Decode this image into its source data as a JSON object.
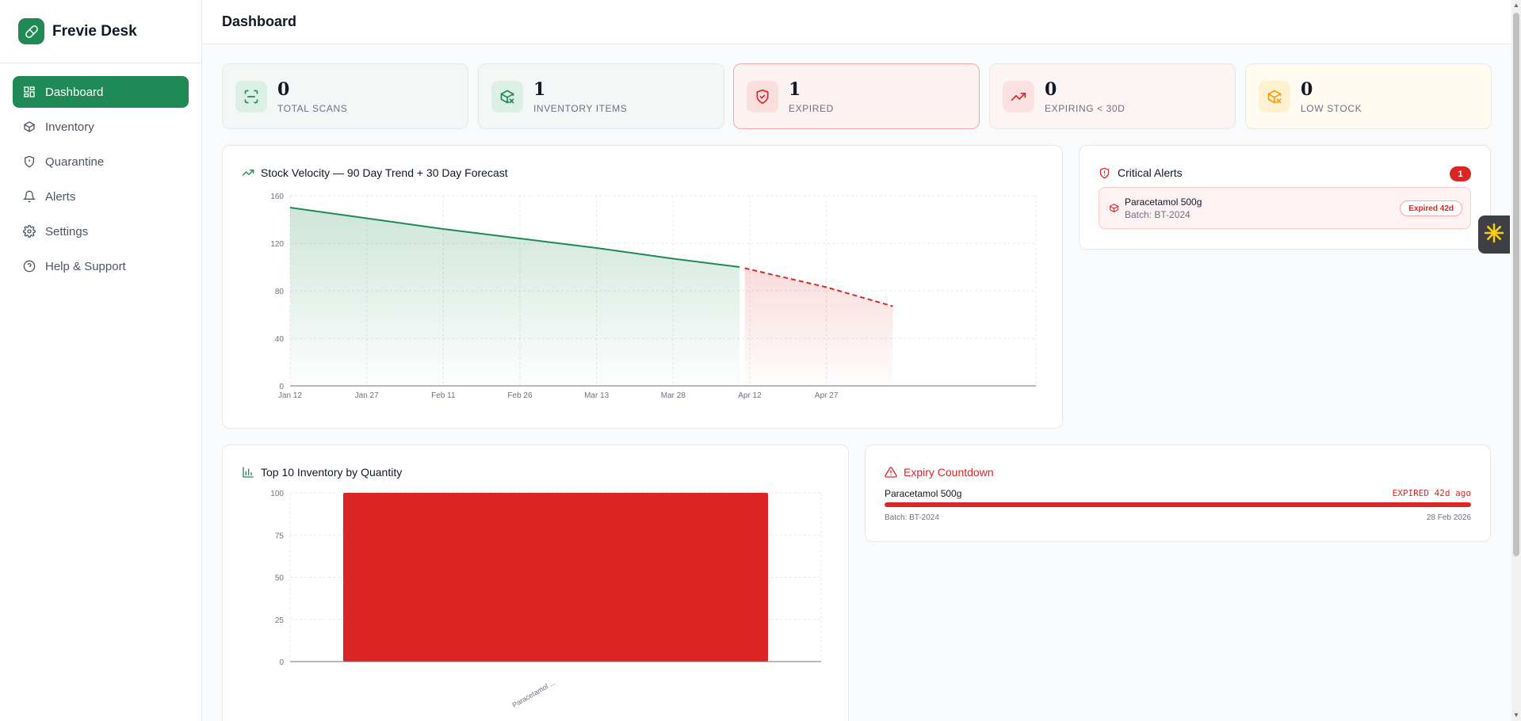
{
  "app": {
    "name": "Frevie Desk"
  },
  "sidebar": {
    "items": [
      {
        "label": "Dashboard",
        "icon": "grid-icon",
        "active": true
      },
      {
        "label": "Inventory",
        "icon": "box-icon"
      },
      {
        "label": "Quarantine",
        "icon": "shield-icon"
      },
      {
        "label": "Alerts",
        "icon": "bell-icon"
      },
      {
        "label": "Settings",
        "icon": "gear-icon"
      },
      {
        "label": "Help & Support",
        "icon": "help-icon"
      }
    ]
  },
  "header": {
    "title": "Dashboard"
  },
  "stats": [
    {
      "value": "0",
      "label": "TOTAL SCANS",
      "icon": "scan-icon",
      "accent": "#1f8a56"
    },
    {
      "value": "1",
      "label": "INVENTORY ITEMS",
      "icon": "package-x-icon",
      "accent": "#1f8a56"
    },
    {
      "value": "1",
      "label": "EXPIRED",
      "icon": "shield-x-icon",
      "accent": "#dc2626"
    },
    {
      "value": "0",
      "label": "EXPIRING < 30D",
      "icon": "trending-up-icon",
      "accent": "#dc2626"
    },
    {
      "value": "0",
      "label": "LOW STOCK",
      "icon": "package-x-icon",
      "accent": "#f59e0b"
    }
  ],
  "velocity": {
    "title": "Stock Velocity — 90 Day Trend + 30 Day Forecast"
  },
  "critical_alerts": {
    "title": "Critical Alerts",
    "count": "1",
    "items": [
      {
        "name": "Paracetamol 500g",
        "batch": "Batch: BT-2024",
        "status": "Expired 42d"
      }
    ]
  },
  "top_inventory": {
    "title": "Top 10 Inventory by Quantity"
  },
  "expiry": {
    "title": "Expiry Countdown",
    "items": [
      {
        "name": "Paracetamol 500g",
        "status": "EXPIRED 42d ago",
        "batch": "Batch: BT-2024",
        "date": "28 Feb 2026",
        "progress": 1.0
      }
    ]
  },
  "chart_data": [
    {
      "type": "area",
      "title": "Stock Velocity — 90 Day Trend + 30 Day Forecast",
      "x_tick_labels": [
        "Jan 12",
        "Jan 27",
        "Feb 11",
        "Feb 26",
        "Mar 13",
        "Mar 28",
        "Apr 12",
        "Apr 27"
      ],
      "ylim": [
        0,
        160
      ],
      "y_ticks": [
        0,
        40,
        80,
        120,
        160
      ],
      "grid": true,
      "series": [
        {
          "name": "",
          "style": "solid",
          "color": "#1f8a56",
          "x": [
            "Jan 12",
            "Jan 27",
            "Feb 11",
            "Feb 26",
            "Mar 13",
            "Mar 28",
            "Apr 10"
          ],
          "values": [
            150,
            141,
            132,
            124,
            116,
            107,
            100
          ]
        },
        {
          "name": "",
          "style": "dashed",
          "color": "#dc2626",
          "x": [
            "Apr 11",
            "Apr 27",
            "May 10"
          ],
          "values": [
            99,
            83,
            67
          ]
        }
      ]
    },
    {
      "type": "bar",
      "title": "Top 10 Inventory by Quantity",
      "categories": [
        "Paracetamol ..."
      ],
      "values": [
        100
      ],
      "ylim": [
        0,
        100
      ],
      "y_ticks": [
        0,
        25,
        50,
        75,
        100
      ],
      "grid": true,
      "color": "#dc2626"
    }
  ]
}
